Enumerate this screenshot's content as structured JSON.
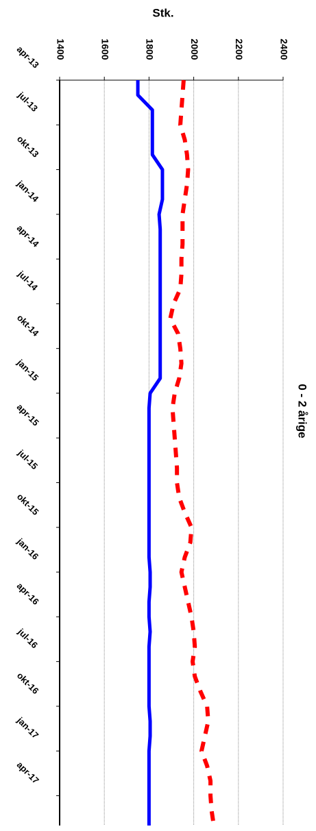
{
  "chart_data": {
    "type": "line",
    "title": "0 - 2 årige",
    "y_label": "Stk.",
    "categories": [
      "apr-13",
      null,
      null,
      "jul-13",
      null,
      null,
      "okt-13",
      null,
      null,
      "jan-14",
      null,
      null,
      "apr-14",
      null,
      null,
      "jul-14",
      null,
      null,
      "okt-14",
      null,
      null,
      "jan-15",
      null,
      null,
      "apr-15",
      null,
      null,
      "jul-15",
      null,
      null,
      "okt-15",
      null,
      null,
      "jan-16",
      null,
      null,
      "apr-16",
      null,
      null,
      "jul-16",
      null,
      null,
      "okt-16",
      null,
      null,
      "jan-17",
      null,
      null,
      "apr-17",
      null,
      null
    ],
    "series": [
      {
        "color": "#0000ff",
        "dash": false,
        "values": [
          1750,
          1750,
          1815,
          1815,
          1815,
          1815,
          1860,
          1860,
          1860,
          1845,
          1850,
          1850,
          1850,
          1850,
          1850,
          1850,
          1850,
          1850,
          1850,
          1850,
          1850,
          1805,
          1800,
          1800,
          1800,
          1800,
          1800,
          1800,
          1800,
          1800,
          1800,
          1800,
          1800,
          1805,
          1805,
          1800,
          1800,
          1805,
          1800,
          1800,
          1800,
          1800,
          1800,
          1805,
          1805,
          1800,
          1800,
          1800,
          1800,
          1800,
          1800
        ]
      },
      {
        "color": "#ff0000",
        "dash": true,
        "values": [
          1955,
          1950,
          1945,
          1940,
          1960,
          1970,
          1975,
          1970,
          1960,
          1950,
          1950,
          1950,
          1945,
          1945,
          1940,
          1910,
          1895,
          1930,
          1940,
          1945,
          1935,
          1915,
          1905,
          1910,
          1915,
          1920,
          1925,
          1925,
          1935,
          1960,
          1990,
          1985,
          1960,
          1945,
          1960,
          1975,
          1990,
          2000,
          2005,
          1995,
          2005,
          2030,
          2060,
          2065,
          2050,
          2035,
          2060,
          2075,
          2075,
          2080,
          2090
        ]
      }
    ],
    "ylim": [
      1400,
      2400
    ],
    "yticks": [
      1400,
      1600,
      1800,
      2000,
      2200,
      2400
    ],
    "grid": true
  }
}
